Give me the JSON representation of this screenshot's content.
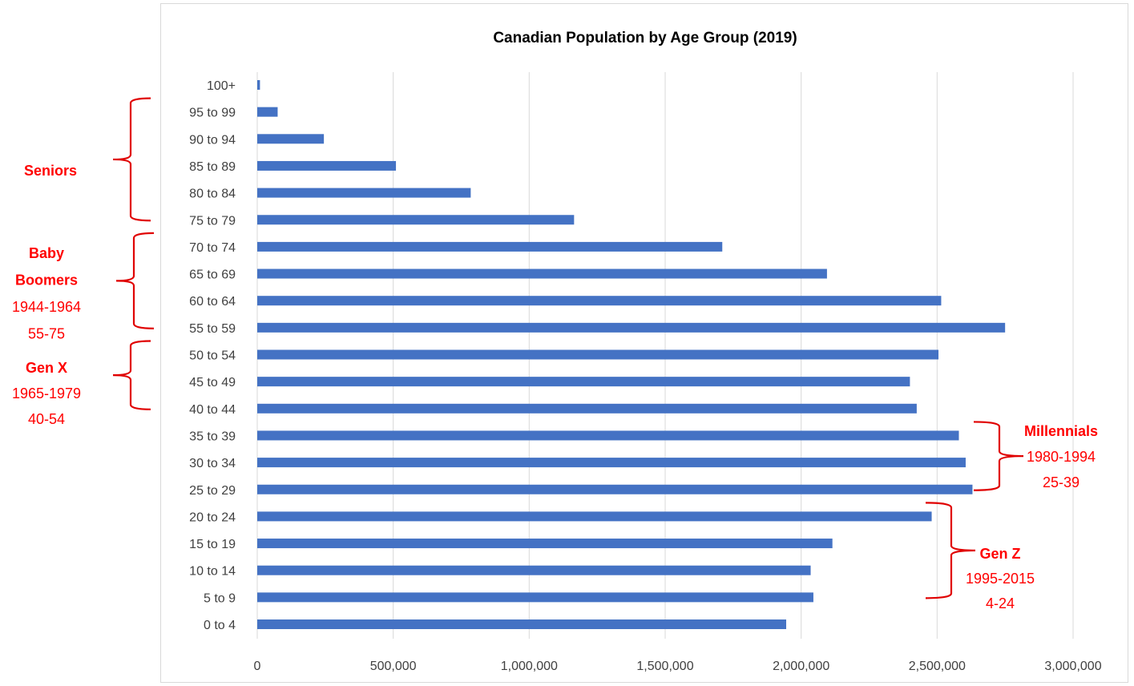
{
  "chart_data": {
    "type": "bar",
    "orientation": "horizontal",
    "title": "Canadian Population by Age Group (2019)",
    "xlabel": "",
    "ylabel": "",
    "xlim": [
      0,
      3000000
    ],
    "x_ticks": [
      "0",
      "500,000",
      "1,000,000",
      "1,500,000",
      "2,000,000",
      "2,500,000",
      "3,000,000"
    ],
    "grid": "vertical",
    "color": "#4472c4",
    "categories": [
      "100+",
      "95 to 99",
      "90 to 94",
      "85 to 89",
      "80 to 84",
      "75 to 79",
      "70 to 74",
      "65 to 69",
      "60 to 64",
      "55 to 59",
      "50 to 54",
      "45 to 49",
      "40 to 44",
      "35 to 39",
      "30 to 34",
      "25 to 29",
      "20 to 24",
      "15 to 19",
      "10 to 14",
      "5 to 9",
      "0 to 4"
    ],
    "values": [
      10000,
      75000,
      245000,
      510000,
      785000,
      1165000,
      1710000,
      2095000,
      2515000,
      2750000,
      2505000,
      2400000,
      2425000,
      2580000,
      2605000,
      2630000,
      2480000,
      2115000,
      2035000,
      2045000,
      1945000
    ]
  },
  "annotations": [
    {
      "id": "seniors",
      "side": "left",
      "from": "95 to 99",
      "to": "75 to 79",
      "lines": [
        {
          "text": "Seniors",
          "bold": true
        }
      ]
    },
    {
      "id": "baby-boomers",
      "side": "left",
      "from": "70 to 74",
      "to": "55 to 59",
      "lines": [
        {
          "text": "Baby",
          "bold": true
        },
        {
          "text": "Boomers",
          "bold": true
        },
        {
          "text": "1944-1964",
          "bold": false
        },
        {
          "text": "55-75",
          "bold": false
        }
      ]
    },
    {
      "id": "gen-x",
      "side": "left",
      "from": "50 to 54",
      "to": "40 to 44",
      "lines": [
        {
          "text": "Gen X",
          "bold": true
        },
        {
          "text": "1965-1979",
          "bold": false
        },
        {
          "text": "40-54",
          "bold": false
        }
      ]
    },
    {
      "id": "millennials",
      "side": "right",
      "from": "35 to 39",
      "to": "25 to 29",
      "lines": [
        {
          "text": "Millennials",
          "bold": true
        },
        {
          "text": "1980-1994",
          "bold": false
        },
        {
          "text": "25-39",
          "bold": false
        }
      ]
    },
    {
      "id": "gen-z",
      "side": "right",
      "from": "20 to 24",
      "to": "5 to 9",
      "lines": [
        {
          "text": "Gen Z",
          "bold": true
        },
        {
          "text": "1995-2015",
          "bold": false
        },
        {
          "text": "4-24",
          "bold": false
        }
      ]
    }
  ],
  "colors": {
    "annotation": "#ff0000",
    "bar": "#4472c4",
    "grid": "#d9d9d9"
  }
}
